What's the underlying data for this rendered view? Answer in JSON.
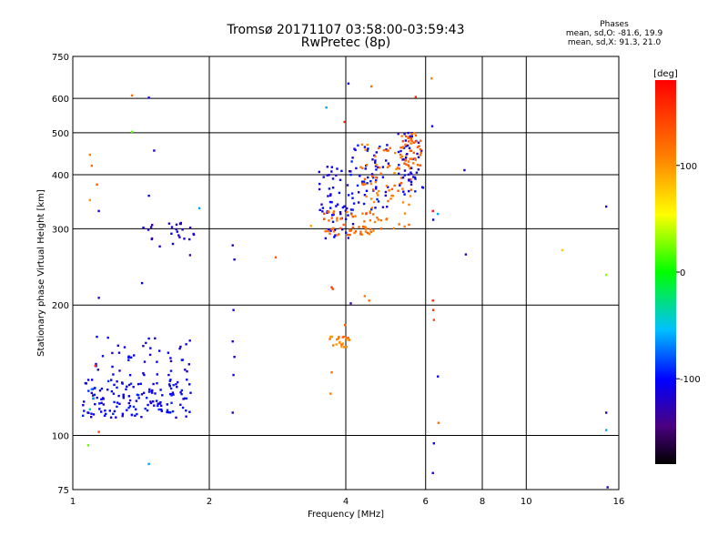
{
  "header": {
    "title": "Tromsø 20171107 03:58:00-03:59:43",
    "subtitle": "RwPretec (8p)",
    "stats_title": "Phases",
    "stats_o": "mean, sd,O: -81.6, 19.9",
    "stats_x": "mean, sd,X:  91.3, 21.0"
  },
  "colorbar": {
    "unit_label": "[deg]",
    "ticks": [
      "100",
      "0",
      "-100"
    ],
    "tick_values": [
      100,
      0,
      -100
    ],
    "range": [
      -180,
      180
    ]
  },
  "chart_data": {
    "type": "scatter",
    "title": "Tromsø 20171107 03:58:00-03:59:43",
    "subtitle": "RwPretec (8p)",
    "xlabel": "Frequency [MHz]",
    "ylabel": "Stationary phase Virtual Height [km]",
    "xscale": "log",
    "yscale": "log",
    "xlim": [
      1,
      16
    ],
    "ylim": [
      75,
      750
    ],
    "xticks": [
      1,
      2,
      4,
      6,
      8,
      10,
      16
    ],
    "xtick_labels": [
      "1",
      "2",
      "4",
      "6",
      "8",
      "10",
      "16"
    ],
    "yticks": [
      75,
      100,
      200,
      300,
      400,
      500,
      600,
      750
    ],
    "ytick_labels": [
      "75",
      "100",
      "200",
      "300",
      "400",
      "500",
      "600",
      "750"
    ],
    "grid": true,
    "color_scale": "phase (deg), -180 to 180",
    "clusters": [
      {
        "x_range": [
          1.05,
          1.82
        ],
        "y_range": [
          110,
          135
        ],
        "phase": -105,
        "count": 150
      },
      {
        "x_range": [
          1.1,
          1.85
        ],
        "y_range": [
          135,
          170
        ],
        "phase": -110,
        "count": 45
      },
      {
        "x_range": [
          1.45,
          1.85
        ],
        "y_range": [
          260,
          310
        ],
        "phase": -120,
        "count": 25
      },
      {
        "x_range": [
          3.45,
          4.15
        ],
        "y_range": [
          285,
          420
        ],
        "phase": -110,
        "count": 60
      },
      {
        "x_range": [
          3.55,
          4.6
        ],
        "y_range": [
          290,
          330
        ],
        "phase": 120,
        "count": 60
      },
      {
        "x_range": [
          4.1,
          5.0
        ],
        "y_range": [
          330,
          470
        ],
        "phase": -105,
        "count": 60
      },
      {
        "x_range": [
          4.3,
          5.6
        ],
        "y_range": [
          300,
          470
        ],
        "phase": 115,
        "count": 80
      },
      {
        "x_range": [
          5.2,
          5.95
        ],
        "y_range": [
          360,
          500
        ],
        "phase": -110,
        "count": 50
      },
      {
        "x_range": [
          5.3,
          5.9
        ],
        "y_range": [
          420,
          500
        ],
        "phase": 125,
        "count": 40
      },
      {
        "x_range": [
          3.65,
          4.1
        ],
        "y_range": [
          160,
          170
        ],
        "phase": 110,
        "count": 25
      }
    ],
    "points": [
      {
        "x": 1.09,
        "y": 115,
        "phase": -40
      },
      {
        "x": 1.11,
        "y": 122,
        "phase": -60
      },
      {
        "x": 1.1,
        "y": 128,
        "phase": -70
      },
      {
        "x": 1.12,
        "y": 145,
        "phase": 150
      },
      {
        "x": 1.08,
        "y": 95,
        "phase": 20
      },
      {
        "x": 1.09,
        "y": 445,
        "phase": 110
      },
      {
        "x": 1.1,
        "y": 420,
        "phase": 120
      },
      {
        "x": 1.09,
        "y": 350,
        "phase": 100
      },
      {
        "x": 1.13,
        "y": 380,
        "phase": 130
      },
      {
        "x": 1.14,
        "y": 330,
        "phase": -110
      },
      {
        "x": 1.14,
        "y": 208,
        "phase": -120
      },
      {
        "x": 1.14,
        "y": 102,
        "phase": 140
      },
      {
        "x": 1.35,
        "y": 610,
        "phase": 120
      },
      {
        "x": 1.35,
        "y": 503,
        "phase": 20
      },
      {
        "x": 1.47,
        "y": 603,
        "phase": -110
      },
      {
        "x": 1.51,
        "y": 455,
        "phase": -110
      },
      {
        "x": 1.47,
        "y": 358,
        "phase": -110
      },
      {
        "x": 1.43,
        "y": 302,
        "phase": -110
      },
      {
        "x": 1.47,
        "y": 86,
        "phase": -60
      },
      {
        "x": 1.42,
        "y": 225,
        "phase": -100
      },
      {
        "x": 1.3,
        "y": 160,
        "phase": -110
      },
      {
        "x": 1.9,
        "y": 335,
        "phase": -60
      },
      {
        "x": 2.25,
        "y": 275,
        "phase": -110
      },
      {
        "x": 2.27,
        "y": 255,
        "phase": -110
      },
      {
        "x": 2.26,
        "y": 195,
        "phase": -110
      },
      {
        "x": 2.25,
        "y": 165,
        "phase": -110
      },
      {
        "x": 2.27,
        "y": 152,
        "phase": -110
      },
      {
        "x": 2.26,
        "y": 138,
        "phase": -110
      },
      {
        "x": 2.25,
        "y": 113,
        "phase": -110
      },
      {
        "x": 2.8,
        "y": 258,
        "phase": 130
      },
      {
        "x": 3.35,
        "y": 305,
        "phase": 90
      },
      {
        "x": 3.62,
        "y": 572,
        "phase": -60
      },
      {
        "x": 3.72,
        "y": 220,
        "phase": 150
      },
      {
        "x": 3.74,
        "y": 218,
        "phase": 140
      },
      {
        "x": 3.72,
        "y": 140,
        "phase": 120
      },
      {
        "x": 3.7,
        "y": 125,
        "phase": 110
      },
      {
        "x": 3.97,
        "y": 530,
        "phase": 160
      },
      {
        "x": 3.98,
        "y": 180,
        "phase": 130
      },
      {
        "x": 4.05,
        "y": 650,
        "phase": -110
      },
      {
        "x": 4.1,
        "y": 202,
        "phase": -130
      },
      {
        "x": 4.55,
        "y": 640,
        "phase": 120
      },
      {
        "x": 4.4,
        "y": 210,
        "phase": 110
      },
      {
        "x": 4.5,
        "y": 205,
        "phase": 120
      },
      {
        "x": 5.7,
        "y": 605,
        "phase": 160
      },
      {
        "x": 6.18,
        "y": 668,
        "phase": 110
      },
      {
        "x": 6.2,
        "y": 518,
        "phase": -110
      },
      {
        "x": 6.22,
        "y": 330,
        "phase": 170
      },
      {
        "x": 6.23,
        "y": 315,
        "phase": -110
      },
      {
        "x": 6.38,
        "y": 325,
        "phase": -60
      },
      {
        "x": 6.22,
        "y": 205,
        "phase": 160
      },
      {
        "x": 6.23,
        "y": 195,
        "phase": 150
      },
      {
        "x": 6.25,
        "y": 185,
        "phase": 140
      },
      {
        "x": 6.38,
        "y": 137,
        "phase": -110
      },
      {
        "x": 6.4,
        "y": 107,
        "phase": 120
      },
      {
        "x": 6.25,
        "y": 96,
        "phase": -110
      },
      {
        "x": 6.22,
        "y": 82,
        "phase": -110
      },
      {
        "x": 7.3,
        "y": 410,
        "phase": -120
      },
      {
        "x": 7.35,
        "y": 262,
        "phase": -120
      },
      {
        "x": 12.0,
        "y": 268,
        "phase": 80
      },
      {
        "x": 15.0,
        "y": 338,
        "phase": -120
      },
      {
        "x": 15.0,
        "y": 235,
        "phase": 30
      },
      {
        "x": 15.0,
        "y": 113,
        "phase": -120
      },
      {
        "x": 15.0,
        "y": 103,
        "phase": -60
      },
      {
        "x": 15.1,
        "y": 76,
        "phase": -120
      }
    ]
  }
}
